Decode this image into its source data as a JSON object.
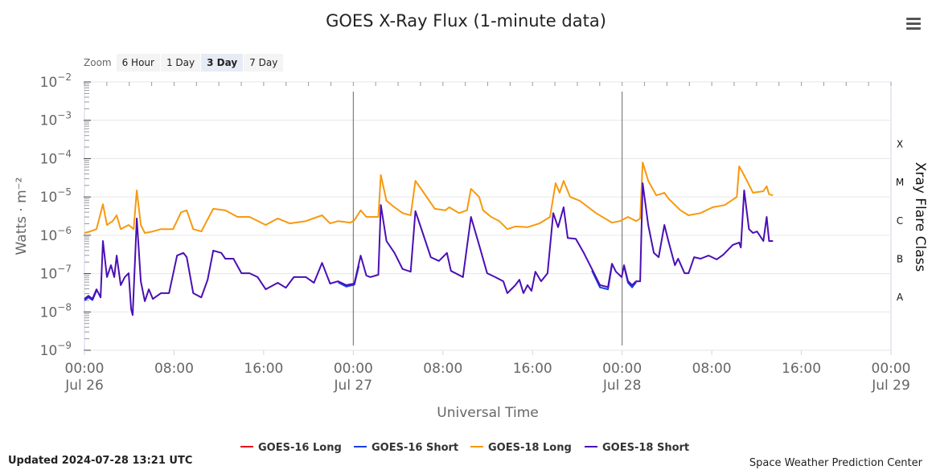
{
  "title": "GOES X-Ray Flux (1-minute data)",
  "menu_icon": "hamburger-icon",
  "zoom": {
    "label": "Zoom",
    "buttons": [
      "6 Hour",
      "1 Day",
      "3 Day",
      "7 Day"
    ],
    "selected": "3 Day"
  },
  "updated": "Updated 2024-07-28 13:21 UTC",
  "credit": "Space Weather Prediction Center",
  "chart_data": {
    "type": "line",
    "title": "GOES X-Ray Flux (1-minute data)",
    "xlabel": "Universal Time",
    "ylabel": "Watts · m⁻²",
    "y2label": "Xray Flare Class",
    "yscale": "log",
    "ylim_log10": [
      -9,
      -2
    ],
    "xlim_hours": [
      0,
      72
    ],
    "x_units": "hours since 2024-07-26 00:00 UTC",
    "y_units": "log10(W/m^2)",
    "y_ticks": [
      "-2",
      "-3",
      "-4",
      "-5",
      "-6",
      "-7",
      "-8",
      "-9"
    ],
    "x_ticks": [
      {
        "h": 0,
        "time": "00:00",
        "date": "Jul 26"
      },
      {
        "h": 8,
        "time": "08:00",
        "date": ""
      },
      {
        "h": 16,
        "time": "16:00",
        "date": ""
      },
      {
        "h": 24,
        "time": "00:00",
        "date": "Jul 27"
      },
      {
        "h": 32,
        "time": "08:00",
        "date": ""
      },
      {
        "h": 40,
        "time": "16:00",
        "date": ""
      },
      {
        "h": 48,
        "time": "00:00",
        "date": "Jul 28"
      },
      {
        "h": 56,
        "time": "08:00",
        "date": ""
      },
      {
        "h": 64,
        "time": "16:00",
        "date": ""
      },
      {
        "h": 72,
        "time": "00:00",
        "date": "Jul 29"
      }
    ],
    "day_lines_hours": [
      24,
      48
    ],
    "flare_classes": [
      {
        "label": "X",
        "log10": -3.6
      },
      {
        "label": "M",
        "log10": -4.6
      },
      {
        "label": "C",
        "log10": -5.6
      },
      {
        "label": "B",
        "log10": -6.6
      },
      {
        "label": "A",
        "log10": -7.6
      }
    ],
    "legend_position": "bottom",
    "series": [
      {
        "name": "GOES-16 Long",
        "color": "#e8141a",
        "segments": []
      },
      {
        "name": "GOES-16 Short",
        "color": "#1a3ee8",
        "segments": [
          [
            [
              0,
              -7.7
            ],
            [
              0.36,
              -7.62
            ],
            [
              0.72,
              -7.69
            ],
            [
              1.08,
              -7.44
            ]
          ],
          [
            [
              22.65,
              -7.23
            ],
            [
              23.37,
              -7.34
            ],
            [
              24.09,
              -7.29
            ],
            [
              24.5,
              -6.8
            ]
          ],
          [
            [
              45.3,
              -6.92
            ],
            [
              46.02,
              -7.36
            ],
            [
              46.74,
              -7.41
            ],
            [
              47.09,
              -6.78
            ]
          ],
          [
            [
              48.17,
              -6.8
            ],
            [
              48.53,
              -7.24
            ],
            [
              48.89,
              -7.36
            ],
            [
              49.25,
              -7.22
            ]
          ]
        ]
      },
      {
        "name": "GOES-18 Long",
        "color": "#f7990f",
        "segments": [
          [
            [
              0,
              -5.94
            ],
            [
              0.5,
              -5.9
            ],
            [
              1.08,
              -5.84
            ],
            [
              1.65,
              -5.19
            ],
            [
              2.01,
              -5.73
            ],
            [
              2.52,
              -5.63
            ],
            [
              2.88,
              -5.48
            ],
            [
              3.24,
              -5.84
            ],
            [
              3.95,
              -5.73
            ],
            [
              4.39,
              -5.84
            ],
            [
              4.67,
              -4.83
            ],
            [
              5.03,
              -5.73
            ],
            [
              5.39,
              -5.94
            ],
            [
              6.11,
              -5.9
            ],
            [
              6.83,
              -5.84
            ],
            [
              7.91,
              -5.84
            ],
            [
              8.63,
              -5.4
            ],
            [
              9.13,
              -5.35
            ],
            [
              9.71,
              -5.84
            ],
            [
              10.43,
              -5.9
            ],
            [
              11.5,
              -5.31
            ],
            [
              12.58,
              -5.35
            ],
            [
              13.66,
              -5.52
            ],
            [
              14.74,
              -5.52
            ],
            [
              16.18,
              -5.73
            ],
            [
              17.26,
              -5.56
            ],
            [
              18.33,
              -5.69
            ],
            [
              19.77,
              -5.63
            ],
            [
              21.21,
              -5.48
            ],
            [
              21.93,
              -5.69
            ],
            [
              22.65,
              -5.63
            ],
            [
              23.73,
              -5.67
            ],
            [
              24.09,
              -5.61
            ],
            [
              24.66,
              -5.35
            ],
            [
              25.17,
              -5.52
            ],
            [
              26.24,
              -5.52
            ],
            [
              26.46,
              -4.43
            ],
            [
              26.96,
              -5.1
            ],
            [
              27.68,
              -5.27
            ],
            [
              28.4,
              -5.42
            ],
            [
              29.12,
              -5.48
            ],
            [
              29.55,
              -4.58
            ],
            [
              30.2,
              -4.85
            ],
            [
              31.28,
              -5.31
            ],
            [
              32.21,
              -5.35
            ],
            [
              32.57,
              -5.27
            ],
            [
              33.43,
              -5.42
            ],
            [
              34.15,
              -5.35
            ],
            [
              34.51,
              -4.79
            ],
            [
              35.23,
              -5.0
            ],
            [
              35.59,
              -5.35
            ],
            [
              36.31,
              -5.52
            ],
            [
              37.03,
              -5.63
            ],
            [
              37.75,
              -5.84
            ],
            [
              38.47,
              -5.77
            ],
            [
              39.55,
              -5.79
            ],
            [
              40.62,
              -5.69
            ],
            [
              41.56,
              -5.52
            ],
            [
              42.06,
              -4.64
            ],
            [
              42.42,
              -4.89
            ],
            [
              42.78,
              -4.58
            ],
            [
              43.36,
              -5.0
            ],
            [
              44.22,
              -5.1
            ],
            [
              45.66,
              -5.42
            ],
            [
              47.09,
              -5.67
            ],
            [
              47.81,
              -5.63
            ],
            [
              48.53,
              -5.52
            ],
            [
              49.25,
              -5.63
            ],
            [
              49.61,
              -5.56
            ],
            [
              49.83,
              -4.1
            ],
            [
              50.33,
              -4.58
            ],
            [
              51.05,
              -4.96
            ],
            [
              51.77,
              -4.89
            ],
            [
              52.13,
              -5.04
            ],
            [
              53.21,
              -5.35
            ],
            [
              53.93,
              -5.48
            ],
            [
              55.0,
              -5.42
            ],
            [
              56.08,
              -5.27
            ],
            [
              57.16,
              -5.21
            ],
            [
              58.24,
              -5.0
            ],
            [
              58.45,
              -4.2
            ],
            [
              58.96,
              -4.47
            ],
            [
              59.68,
              -4.89
            ],
            [
              60.61,
              -4.85
            ],
            [
              60.9,
              -4.72
            ],
            [
              61.12,
              -4.93
            ],
            [
              61.47,
              -4.96
            ]
          ]
        ]
      },
      {
        "name": "GOES-18 Short",
        "color": "#4b0fb4",
        "segments": [
          [
            [
              0,
              -7.66
            ],
            [
              0.36,
              -7.58
            ],
            [
              0.72,
              -7.66
            ],
            [
              1.08,
              -7.41
            ],
            [
              1.44,
              -7.62
            ],
            [
              1.65,
              -6.15
            ],
            [
              2.01,
              -7.09
            ],
            [
              2.37,
              -6.78
            ],
            [
              2.66,
              -7.09
            ],
            [
              2.88,
              -6.53
            ],
            [
              3.24,
              -7.3
            ],
            [
              3.6,
              -7.09
            ],
            [
              3.95,
              -6.99
            ],
            [
              4.17,
              -7.93
            ],
            [
              4.31,
              -8.08
            ],
            [
              4.67,
              -5.56
            ],
            [
              5.03,
              -7.2
            ],
            [
              5.39,
              -7.72
            ],
            [
              5.75,
              -7.41
            ],
            [
              6.11,
              -7.66
            ],
            [
              6.83,
              -7.51
            ],
            [
              7.55,
              -7.51
            ],
            [
              8.27,
              -6.53
            ],
            [
              8.84,
              -6.46
            ],
            [
              9.13,
              -6.57
            ],
            [
              9.71,
              -7.51
            ],
            [
              10.43,
              -7.62
            ],
            [
              11.0,
              -7.16
            ],
            [
              11.5,
              -6.4
            ],
            [
              12.22,
              -6.46
            ],
            [
              12.58,
              -6.61
            ],
            [
              13.3,
              -6.61
            ],
            [
              14.02,
              -6.99
            ],
            [
              14.74,
              -6.99
            ],
            [
              15.46,
              -7.09
            ],
            [
              16.18,
              -7.41
            ],
            [
              17.26,
              -7.24
            ],
            [
              17.98,
              -7.37
            ],
            [
              18.69,
              -7.09
            ],
            [
              19.77,
              -7.09
            ],
            [
              20.49,
              -7.24
            ],
            [
              21.21,
              -6.72
            ],
            [
              21.93,
              -7.26
            ],
            [
              22.65,
              -7.2
            ],
            [
              23.37,
              -7.3
            ],
            [
              24.09,
              -7.26
            ],
            [
              24.66,
              -6.53
            ],
            [
              25.17,
              -7.05
            ],
            [
              25.52,
              -7.09
            ],
            [
              26.24,
              -7.03
            ],
            [
              26.46,
              -5.21
            ],
            [
              26.96,
              -6.15
            ],
            [
              27.68,
              -6.46
            ],
            [
              28.4,
              -6.88
            ],
            [
              29.12,
              -6.95
            ],
            [
              29.55,
              -5.37
            ],
            [
              30.2,
              -5.94
            ],
            [
              30.92,
              -6.57
            ],
            [
              31.64,
              -6.67
            ],
            [
              32.36,
              -6.46
            ],
            [
              32.72,
              -6.93
            ],
            [
              33.79,
              -7.09
            ],
            [
              34.51,
              -5.52
            ],
            [
              35.23,
              -6.25
            ],
            [
              35.95,
              -6.99
            ],
            [
              36.67,
              -7.09
            ],
            [
              37.39,
              -7.2
            ],
            [
              37.75,
              -7.51
            ],
            [
              38.47,
              -7.3
            ],
            [
              38.83,
              -7.16
            ],
            [
              39.19,
              -7.51
            ],
            [
              39.55,
              -7.3
            ],
            [
              39.91,
              -7.45
            ],
            [
              40.26,
              -6.95
            ],
            [
              40.77,
              -7.2
            ],
            [
              41.34,
              -6.99
            ],
            [
              41.85,
              -5.42
            ],
            [
              42.28,
              -5.79
            ],
            [
              42.78,
              -5.27
            ],
            [
              43.14,
              -6.07
            ],
            [
              43.86,
              -6.09
            ],
            [
              44.58,
              -6.46
            ],
            [
              45.3,
              -6.88
            ],
            [
              46.02,
              -7.3
            ],
            [
              46.74,
              -7.35
            ],
            [
              47.09,
              -6.74
            ],
            [
              47.45,
              -6.95
            ],
            [
              47.96,
              -7.09
            ],
            [
              48.17,
              -6.78
            ],
            [
              48.53,
              -7.2
            ],
            [
              48.89,
              -7.3
            ],
            [
              49.25,
              -7.2
            ],
            [
              49.61,
              -7.2
            ],
            [
              49.83,
              -4.64
            ],
            [
              50.33,
              -5.73
            ],
            [
              50.83,
              -6.46
            ],
            [
              51.26,
              -6.57
            ],
            [
              51.77,
              -5.73
            ],
            [
              52.13,
              -6.15
            ],
            [
              52.71,
              -6.78
            ],
            [
              53.0,
              -6.61
            ],
            [
              53.57,
              -6.99
            ],
            [
              53.93,
              -6.99
            ],
            [
              54.43,
              -6.57
            ],
            [
              55.0,
              -6.61
            ],
            [
              55.72,
              -6.53
            ],
            [
              56.44,
              -6.63
            ],
            [
              57.02,
              -6.51
            ],
            [
              57.88,
              -6.25
            ],
            [
              58.45,
              -6.19
            ],
            [
              58.6,
              -6.32
            ],
            [
              58.89,
              -4.83
            ],
            [
              59.32,
              -5.84
            ],
            [
              59.68,
              -5.94
            ],
            [
              60.04,
              -5.9
            ],
            [
              60.61,
              -6.15
            ],
            [
              60.9,
              -5.52
            ],
            [
              61.12,
              -6.15
            ],
            [
              61.47,
              -6.15
            ]
          ]
        ]
      }
    ]
  }
}
